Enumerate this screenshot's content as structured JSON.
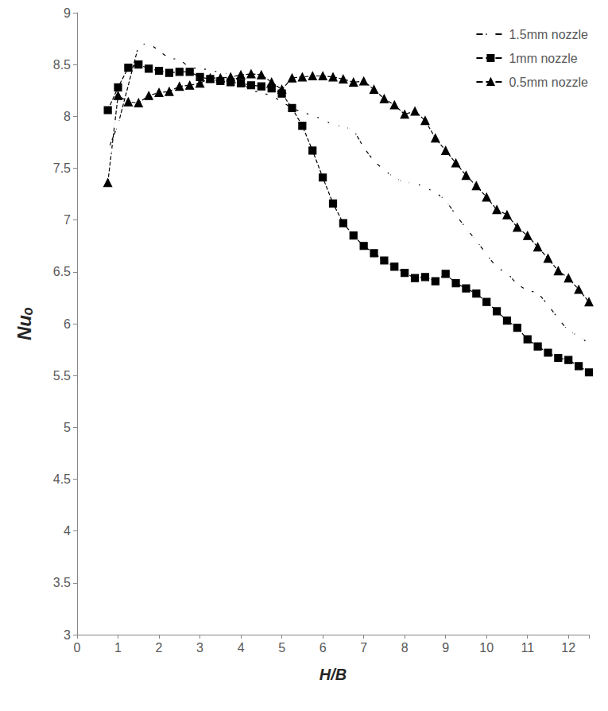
{
  "chart_data": {
    "type": "line",
    "x_label": "H/B",
    "y_label": "Nuₒ",
    "xlim": [
      0,
      12.5
    ],
    "xticks": [
      0,
      1,
      2,
      3,
      4,
      5,
      6,
      7,
      8,
      9,
      10,
      11,
      12
    ],
    "ylim": [
      3,
      9
    ],
    "yticks": [
      3,
      3.5,
      4,
      4.5,
      5,
      5.5,
      6,
      6.5,
      7,
      7.5,
      8,
      8.5,
      9
    ],
    "grid": false,
    "legend": "top-right",
    "series": [
      {
        "name": "1.5mm nozzle",
        "color": "#000000",
        "marker": "circle_open",
        "line_style": "dashed",
        "x": [
          0.75,
          1,
          1.5,
          1.75,
          2,
          2.25,
          2.5,
          2.75,
          3,
          3.25,
          3.5,
          3.75,
          4,
          4.25,
          4.5,
          4.75,
          5,
          5.25,
          5.5,
          5.75,
          6,
          6.25,
          6.5,
          6.75,
          7,
          7.25,
          7.5,
          7.75,
          8,
          8.25,
          8.5,
          8.75,
          9,
          9.25,
          9.5,
          9.75,
          10,
          10.25,
          10.5,
          10.75,
          11,
          11.25,
          11.5,
          11.75,
          12,
          12.25,
          12.5
        ],
        "values": [
          7.67,
          7.92,
          8.68,
          8.71,
          8.63,
          8.56,
          8.55,
          8.47,
          8.46,
          8.45,
          8.42,
          8.41,
          8.33,
          8.25,
          8.23,
          8.2,
          8.14,
          8.08,
          8.04,
          8.01,
          7.97,
          7.92,
          7.9,
          7.87,
          7.7,
          7.57,
          7.48,
          7.41,
          7.36,
          7.36,
          7.31,
          7.27,
          7.19,
          7.05,
          6.92,
          6.8,
          6.67,
          6.54,
          6.49,
          6.38,
          6.32,
          6.3,
          6.18,
          6.05,
          5.93,
          5.88,
          5.81
        ]
      },
      {
        "name": "1mm nozzle",
        "color": "#000000",
        "marker": "square",
        "line_style": "dashed",
        "x": [
          0.75,
          1,
          1.25,
          1.5,
          1.75,
          2,
          2.25,
          2.5,
          2.75,
          3,
          3.25,
          3.5,
          3.75,
          4,
          4.25,
          4.5,
          4.75,
          5,
          5.25,
          5.5,
          5.75,
          6,
          6.25,
          6.5,
          6.75,
          7,
          7.25,
          7.5,
          7.75,
          8,
          8.25,
          8.5,
          8.75,
          9,
          9.25,
          9.5,
          9.75,
          10,
          10.25,
          10.5,
          10.75,
          11,
          11.25,
          11.5,
          11.75,
          12,
          12.25,
          12.5
        ],
        "values": [
          8.06,
          8.28,
          8.47,
          8.5,
          8.46,
          8.44,
          8.42,
          8.43,
          8.43,
          8.38,
          8.36,
          8.34,
          8.33,
          8.32,
          8.3,
          8.29,
          8.27,
          8.22,
          8.08,
          7.91,
          7.67,
          7.41,
          7.16,
          6.97,
          6.85,
          6.75,
          6.68,
          6.61,
          6.55,
          6.49,
          6.44,
          6.45,
          6.41,
          6.48,
          6.39,
          6.34,
          6.29,
          6.21,
          6.12,
          6.03,
          5.96,
          5.85,
          5.78,
          5.72,
          5.67,
          5.65,
          5.59,
          5.53
        ]
      },
      {
        "name": "0.5mm nozzle",
        "color": "#000000",
        "marker": "triangle",
        "line_style": "dashed",
        "x": [
          0.75,
          1,
          1.25,
          1.5,
          1.75,
          2,
          2.25,
          2.5,
          2.75,
          3,
          3.25,
          3.5,
          3.75,
          4,
          4.25,
          4.5,
          4.75,
          5,
          5.25,
          5.5,
          5.75,
          6,
          6.25,
          6.5,
          6.75,
          7,
          7.25,
          7.5,
          7.75,
          8,
          8.25,
          8.5,
          8.75,
          9,
          9.25,
          9.5,
          9.75,
          10,
          10.25,
          10.5,
          10.75,
          11,
          11.25,
          11.5,
          11.75,
          12,
          12.25,
          12.5
        ],
        "values": [
          7.36,
          8.2,
          8.14,
          8.13,
          8.2,
          8.23,
          8.24,
          8.29,
          8.3,
          8.32,
          8.37,
          8.37,
          8.38,
          8.4,
          8.41,
          8.4,
          8.33,
          8.26,
          8.37,
          8.38,
          8.39,
          8.39,
          8.38,
          8.36,
          8.33,
          8.34,
          8.26,
          8.17,
          8.11,
          8.02,
          8.05,
          7.96,
          7.79,
          7.67,
          7.55,
          7.43,
          7.33,
          7.22,
          7.1,
          7.05,
          6.93,
          6.85,
          6.74,
          6.63,
          6.51,
          6.44,
          6.33,
          6.21
        ]
      }
    ]
  }
}
